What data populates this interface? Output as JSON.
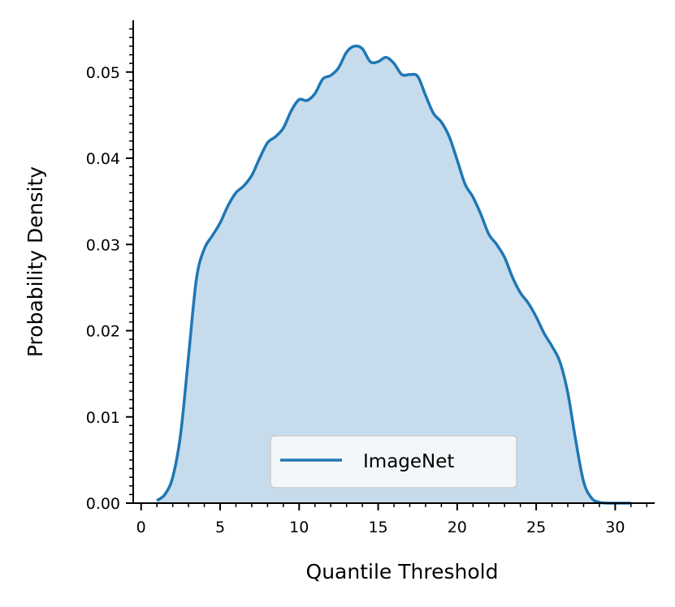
{
  "chart_data": {
    "type": "area",
    "xlabel": "Quantile Threshold",
    "ylabel": "Probability Density",
    "xlim": [
      -0.5,
      32.5
    ],
    "ylim": [
      0,
      0.056
    ],
    "x_ticks": [
      0,
      5,
      10,
      15,
      20,
      25,
      30
    ],
    "x_tick_labels": [
      "0",
      "5",
      "10",
      "15",
      "20",
      "25",
      "30"
    ],
    "y_ticks": [
      0.0,
      0.01,
      0.02,
      0.03,
      0.04,
      0.05
    ],
    "y_tick_labels": [
      "0.00",
      "0.01",
      "0.02",
      "0.03",
      "0.04",
      "0.05"
    ],
    "grid": false,
    "legend": {
      "position": "lower center",
      "entries": [
        "ImageNet"
      ]
    },
    "series": [
      {
        "name": "ImageNet",
        "color": "#1f77b4",
        "fill_color": "#c6dcec",
        "x": [
          1.0,
          1.5,
          2.0,
          2.5,
          3.0,
          3.5,
          4.0,
          4.5,
          5.0,
          5.5,
          6.0,
          6.5,
          7.0,
          7.5,
          8.0,
          8.5,
          9.0,
          9.5,
          10.0,
          10.5,
          11.0,
          11.5,
          12.0,
          12.5,
          13.0,
          13.5,
          14.0,
          14.5,
          15.0,
          15.5,
          16.0,
          16.5,
          17.0,
          17.5,
          18.0,
          18.5,
          19.0,
          19.5,
          20.0,
          20.5,
          21.0,
          21.5,
          22.0,
          22.5,
          23.0,
          23.5,
          24.0,
          24.5,
          25.0,
          25.5,
          26.0,
          26.5,
          27.0,
          27.5,
          28.0,
          28.5,
          29.0,
          29.5,
          30.0,
          30.5,
          31.0
        ],
        "y": [
          0.0003,
          0.001,
          0.003,
          0.008,
          0.017,
          0.026,
          0.0295,
          0.031,
          0.0325,
          0.0345,
          0.036,
          0.0368,
          0.038,
          0.04,
          0.0418,
          0.0425,
          0.0435,
          0.0455,
          0.0468,
          0.0467,
          0.0475,
          0.0492,
          0.0496,
          0.0505,
          0.0523,
          0.053,
          0.0527,
          0.0512,
          0.0512,
          0.0517,
          0.051,
          0.0497,
          0.0497,
          0.0495,
          0.0473,
          0.0452,
          0.0442,
          0.0425,
          0.0398,
          0.037,
          0.0355,
          0.0335,
          0.0312,
          0.03,
          0.0285,
          0.0262,
          0.0244,
          0.0232,
          0.0216,
          0.0197,
          0.0182,
          0.0164,
          0.0128,
          0.0073,
          0.0025,
          0.0006,
          0.0001,
          0.0,
          0.0,
          0.0,
          0.0
        ]
      }
    ]
  }
}
